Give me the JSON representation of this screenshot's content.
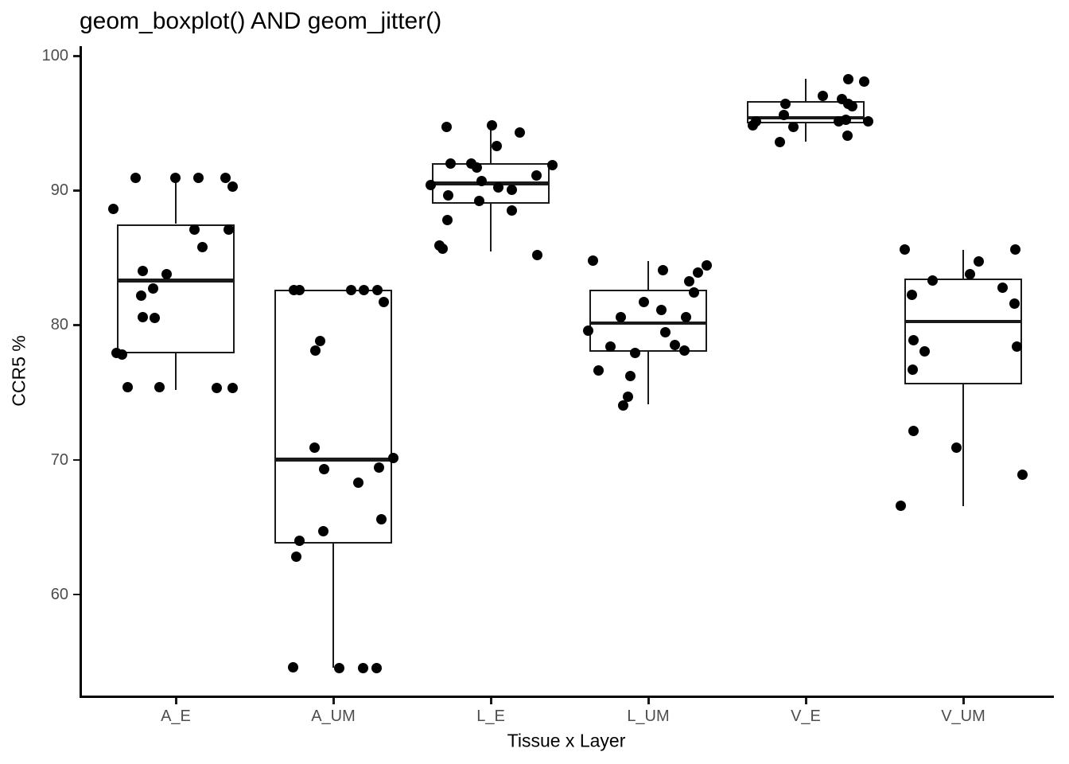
{
  "chart_data": {
    "type": "boxplot+jitter",
    "title": "geom_boxplot() AND geom_jitter()",
    "xlabel": "Tissue x Layer",
    "ylabel": "CCR5 %",
    "y_ticks": [
      100,
      90,
      80,
      70,
      60
    ],
    "ylim": [
      52.5,
      100.5
    ],
    "grid": "off",
    "legend": "none",
    "point_color": "#000000",
    "box_color": "#1a1a1a",
    "axis_text_color": "#4d4d4d",
    "points_format": "[jitter_x_offset_px_from_category_center, value]",
    "categories": [
      "A_E",
      "A_UM",
      "L_E",
      "L_UM",
      "V_E",
      "V_UM"
    ],
    "groups": [
      {
        "label": "A_E",
        "q1": 77.9,
        "median": 83.3,
        "q3": 87.5,
        "whisker_low": 75.2,
        "whisker_high": 90.9,
        "points": [
          [
            -51,
            90.9
          ],
          [
            -1,
            90.9
          ],
          [
            28,
            90.9
          ],
          [
            62,
            90.9
          ],
          [
            71,
            90.3
          ],
          [
            -79,
            88.6
          ],
          [
            23,
            87.1
          ],
          [
            66,
            87.1
          ],
          [
            33,
            85.8
          ],
          [
            -42,
            84.0
          ],
          [
            -12,
            83.8
          ],
          [
            -29,
            82.7
          ],
          [
            -44,
            82.2
          ],
          [
            -42,
            80.6
          ],
          [
            -27,
            80.5
          ],
          [
            -75,
            77.9
          ],
          [
            -68,
            77.8
          ],
          [
            -61,
            75.4
          ],
          [
            -21,
            75.4
          ],
          [
            51,
            75.3
          ],
          [
            71,
            75.3
          ]
        ]
      },
      {
        "label": "A_UM",
        "q1": 63.8,
        "median": 70.0,
        "q3": 82.6,
        "whisker_low": 54.55,
        "whisker_high": 82.6,
        "points": [
          [
            -50,
            82.6
          ],
          [
            -43,
            82.6
          ],
          [
            22,
            82.6
          ],
          [
            38,
            82.6
          ],
          [
            55,
            82.6
          ],
          [
            63,
            81.7
          ],
          [
            -17,
            78.8
          ],
          [
            -23,
            78.1
          ],
          [
            -24,
            70.9
          ],
          [
            75,
            70.1
          ],
          [
            57,
            69.4
          ],
          [
            -12,
            69.3
          ],
          [
            31,
            68.3
          ],
          [
            60,
            65.6
          ],
          [
            -13,
            64.7
          ],
          [
            -43,
            64.0
          ],
          [
            -47,
            62.8
          ],
          [
            -51,
            54.6
          ],
          [
            7,
            54.5
          ],
          [
            37,
            54.5
          ],
          [
            54,
            54.5
          ]
        ]
      },
      {
        "label": "L_E",
        "q1": 89.0,
        "median": 90.5,
        "q3": 92.0,
        "whisker_low": 85.45,
        "whisker_high": 94.9,
        "points": [
          [
            -56,
            94.7
          ],
          [
            1,
            94.85
          ],
          [
            36,
            94.3
          ],
          [
            7,
            93.3
          ],
          [
            -51,
            92.0
          ],
          [
            -25,
            92.0
          ],
          [
            -18,
            91.7
          ],
          [
            77,
            91.9
          ],
          [
            57,
            91.1
          ],
          [
            -12,
            90.7
          ],
          [
            -76,
            90.4
          ],
          [
            9,
            90.2
          ],
          [
            26,
            90.05
          ],
          [
            -54,
            89.65
          ],
          [
            -15,
            89.2
          ],
          [
            26,
            88.5
          ],
          [
            -55,
            87.8
          ],
          [
            -65,
            85.9
          ],
          [
            -61,
            85.65
          ],
          [
            58,
            85.2
          ]
        ]
      },
      {
        "label": "L_UM",
        "q1": 78.0,
        "median": 80.15,
        "q3": 82.6,
        "whisker_low": 74.1,
        "whisker_high": 84.75,
        "points": [
          [
            -70,
            84.8
          ],
          [
            73,
            84.4
          ],
          [
            18,
            84.1
          ],
          [
            62,
            83.9
          ],
          [
            51,
            83.25
          ],
          [
            57,
            82.4
          ],
          [
            -6,
            81.7
          ],
          [
            16,
            81.1
          ],
          [
            -35,
            80.6
          ],
          [
            47,
            80.6
          ],
          [
            -76,
            79.6
          ],
          [
            21,
            79.45
          ],
          [
            33,
            78.5
          ],
          [
            -48,
            78.4
          ],
          [
            45,
            78.1
          ],
          [
            -17,
            77.9
          ],
          [
            -63,
            76.65
          ],
          [
            -23,
            76.2
          ],
          [
            -26,
            74.65
          ],
          [
            -32,
            74.05
          ]
        ]
      },
      {
        "label": "V_E",
        "q1": 95.0,
        "median": 95.4,
        "q3": 96.65,
        "whisker_low": 93.6,
        "whisker_high": 98.3,
        "points": [
          [
            53,
            98.25
          ],
          [
            73,
            98.1
          ],
          [
            21,
            97.0
          ],
          [
            45,
            96.8
          ],
          [
            -26,
            96.4
          ],
          [
            53,
            96.45
          ],
          [
            58,
            96.25
          ],
          [
            -28,
            95.6
          ],
          [
            50,
            95.25
          ],
          [
            -63,
            95.15
          ],
          [
            41,
            95.15
          ],
          [
            78,
            95.15
          ],
          [
            -67,
            94.85
          ],
          [
            -16,
            94.7
          ],
          [
            52,
            94.05
          ],
          [
            -33,
            93.6
          ]
        ]
      },
      {
        "label": "V_UM",
        "q1": 75.6,
        "median": 80.25,
        "q3": 83.45,
        "whisker_low": 66.55,
        "whisker_high": 85.6,
        "points": [
          [
            -74,
            85.6
          ],
          [
            65,
            85.6
          ],
          [
            19,
            84.7
          ],
          [
            8,
            83.75
          ],
          [
            -39,
            83.3
          ],
          [
            49,
            82.8
          ],
          [
            -65,
            82.25
          ],
          [
            64,
            81.6
          ],
          [
            -63,
            78.85
          ],
          [
            67,
            78.4
          ],
          [
            -49,
            78.05
          ],
          [
            -64,
            76.7
          ],
          [
            -63,
            72.15
          ],
          [
            -9,
            70.9
          ],
          [
            74,
            68.9
          ],
          [
            -79,
            66.55
          ]
        ]
      }
    ]
  }
}
